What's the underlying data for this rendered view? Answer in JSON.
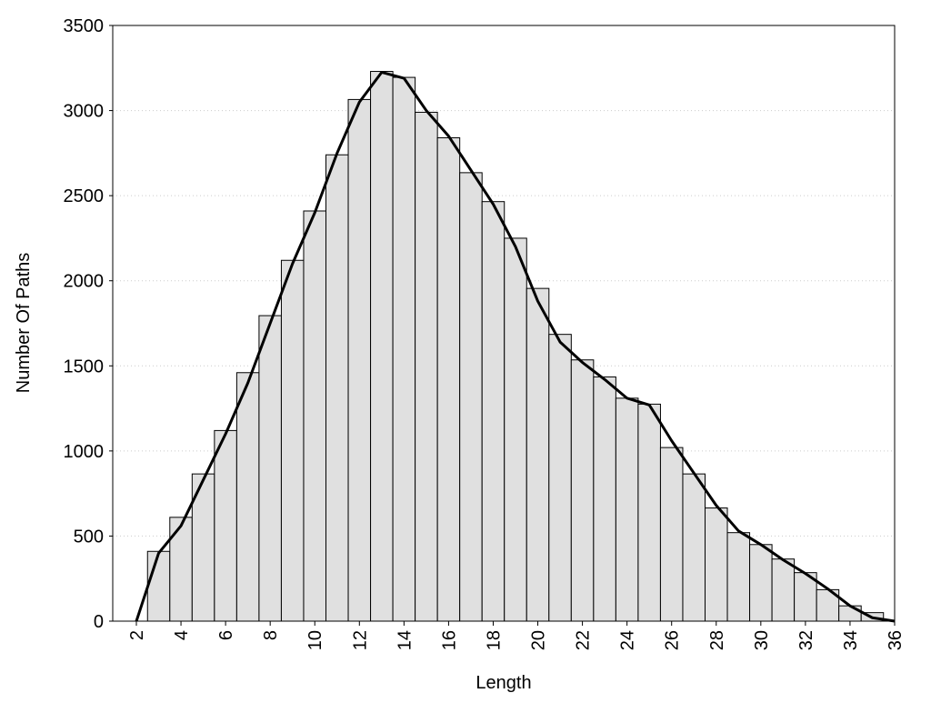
{
  "chart_data": {
    "type": "histogram",
    "x_label": "Length",
    "y_label": "Number Of Paths",
    "bins": [
      2.5,
      3.5,
      4.5,
      5.5,
      6.5,
      7.5,
      8.5,
      9.5,
      10.5,
      11.5,
      12.5,
      13.5,
      14.5,
      15.5,
      16.5,
      17.5,
      18.5,
      19.5,
      20.5,
      21.5,
      22.5,
      23.5,
      24.5,
      25.5,
      26.5,
      27.5,
      28.5,
      29.5,
      30.5,
      31.5,
      32.5,
      33.5,
      34.5,
      35.5
    ],
    "values": [
      410,
      610,
      865,
      1120,
      1460,
      1795,
      2120,
      2410,
      2740,
      3065,
      3230,
      3195,
      2990,
      2840,
      2635,
      2465,
      2250,
      1955,
      1685,
      1535,
      1435,
      1310,
      1275,
      1020,
      865,
      665,
      520,
      450,
      365,
      285,
      185,
      90,
      50
    ],
    "color": "#e0e0e0",
    "density": {
      "color": "#000000",
      "x": [
        2,
        2.5,
        3,
        4,
        5,
        6,
        7,
        8,
        9,
        10,
        11,
        12,
        13,
        14,
        15,
        16,
        17,
        18,
        19,
        20,
        21,
        22,
        23,
        24,
        25,
        26,
        27,
        28,
        29,
        30,
        31,
        32,
        33,
        34,
        35,
        36
      ],
      "values": [
        0,
        200,
        400,
        560,
        830,
        1100,
        1400,
        1750,
        2100,
        2400,
        2750,
        3050,
        3225,
        3190,
        3000,
        2850,
        2650,
        2450,
        2200,
        1880,
        1640,
        1520,
        1420,
        1310,
        1270,
        1060,
        870,
        680,
        530,
        450,
        360,
        280,
        190,
        90,
        20,
        0
      ]
    },
    "xlim": [
      0.94,
      36
    ],
    "ylim": [
      0,
      3500
    ],
    "xticks": [
      2,
      4,
      6,
      8,
      10,
      12,
      14,
      16,
      18,
      20,
      22,
      24,
      26,
      28,
      30,
      32,
      34,
      36
    ],
    "yticks": [
      0,
      500,
      1000,
      1500,
      2000,
      2500,
      3000,
      3500
    ],
    "grid": true
  }
}
